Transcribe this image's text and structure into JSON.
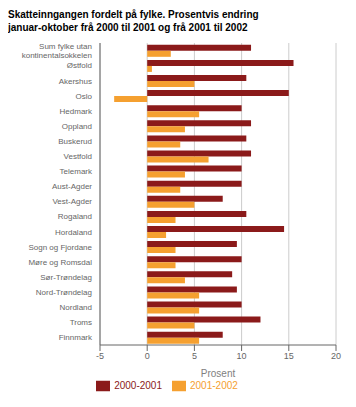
{
  "chart_data": {
    "type": "bar",
    "orientation": "horizontal",
    "title": "Skatteinngangen fordelt på fylke. Prosentvis endring",
    "subtitle": "januar-oktober frå 2000 til 2001 og frå 2001 til 2002",
    "categories": [
      "Sum fylke utan\nkontinentalsokkelen",
      "Østfold",
      "Akershus",
      "Oslo",
      "Hedmark",
      "Oppland",
      "Buskerud",
      "Vestfold",
      "Telemark",
      "Aust-Agder",
      "Vest-Agder",
      "Rogaland",
      "Hordaland",
      "Sogn og Fjordane",
      "Møre og Romsdal",
      "Sør-Trøndelag",
      "Nord-Trøndelag",
      "Nordland",
      "Troms",
      "Finnmark"
    ],
    "series": [
      {
        "name": "2000-2001",
        "color": "#8B1A1A",
        "values": [
          11.0,
          15.5,
          10.5,
          15.0,
          10.0,
          11.0,
          10.5,
          11.0,
          10.0,
          10.0,
          8.0,
          10.5,
          14.5,
          9.5,
          10.0,
          9.0,
          9.5,
          10.0,
          12.0,
          8.0
        ]
      },
      {
        "name": "2001-2002",
        "color": "#F5A030",
        "values": [
          2.5,
          0.5,
          5.0,
          -3.5,
          5.5,
          4.0,
          3.5,
          6.5,
          4.0,
          3.5,
          5.0,
          3.0,
          2.0,
          3.0,
          3.0,
          4.0,
          5.5,
          5.5,
          5.0,
          5.5
        ]
      }
    ],
    "xlabel": "Prosent",
    "xlim": [
      -5,
      20
    ],
    "xticks": [
      -5,
      0,
      5,
      10,
      15,
      20
    ],
    "grid": true,
    "legend": "bottom"
  }
}
